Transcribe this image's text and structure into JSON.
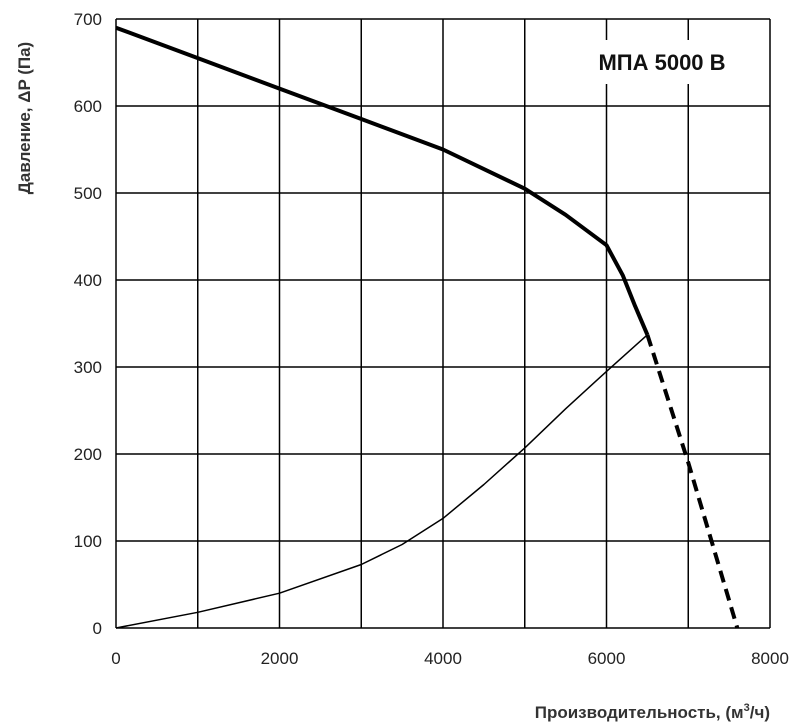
{
  "chart_data": {
    "type": "line",
    "title": "МПА 5000 В",
    "xlabel": "Производительность, (м³/ч)",
    "xlabel_main": "Производительность, (м",
    "xlabel_sup": "3",
    "xlabel_end": "/ч)",
    "ylabel": "Давление, ΔP (Па)",
    "xlim": [
      0,
      8000
    ],
    "ylim": [
      0,
      700
    ],
    "xticks": [
      0,
      2000,
      4000,
      6000,
      8000
    ],
    "yticks": [
      0,
      100,
      200,
      300,
      400,
      500,
      600,
      700
    ],
    "grid": true,
    "series": [
      {
        "style": "thick-solid",
        "x": [
          0,
          1000,
          2000,
          3000,
          4000,
          5000,
          5500,
          6000,
          6200,
          6350,
          6500
        ],
        "y": [
          690,
          655,
          620,
          585,
          550,
          505,
          475,
          440,
          405,
          370,
          337
        ]
      },
      {
        "style": "thick-dashed",
        "x": [
          6500,
          7000,
          7600
        ],
        "y": [
          337,
          190,
          0
        ]
      },
      {
        "style": "thin-solid",
        "x": [
          0,
          1000,
          2000,
          3000,
          3500,
          4000,
          4500,
          5000,
          5500,
          6000,
          6500
        ],
        "y": [
          0,
          18,
          40,
          73,
          96,
          126,
          165,
          207,
          252,
          295,
          337
        ]
      }
    ]
  }
}
